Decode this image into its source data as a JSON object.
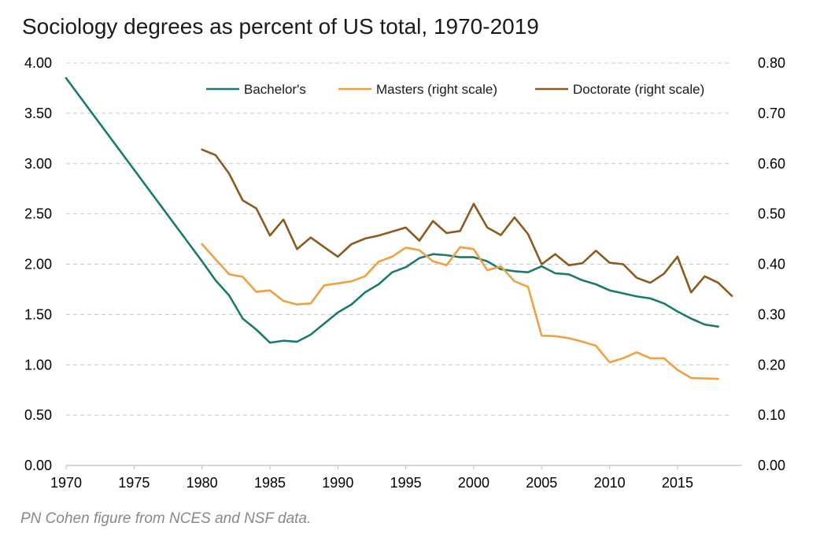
{
  "title": "Sociology degrees as percent of US total, 1970-2019",
  "footnote": "PN Cohen figure from NCES and NSF data.",
  "chart_data": {
    "type": "line",
    "title": "Sociology degrees as percent of US total, 1970-2019",
    "xlabel": "",
    "ylabel_left": "",
    "ylabel_right": "",
    "xlim": [
      1970,
      2019
    ],
    "ylim_left": [
      0,
      4
    ],
    "ylim_right": [
      0,
      0.8
    ],
    "x_ticks": [
      1970,
      1975,
      1980,
      1985,
      1990,
      1995,
      2000,
      2005,
      2010,
      2015
    ],
    "y_ticks_left": [
      "0.00",
      "0.50",
      "1.00",
      "1.50",
      "2.00",
      "2.50",
      "3.00",
      "3.50",
      "4.00"
    ],
    "y_ticks_right": [
      "0.00",
      "0.10",
      "0.20",
      "0.30",
      "0.40",
      "0.50",
      "0.60",
      "0.70",
      "0.80"
    ],
    "grid": "horizontal dashed",
    "legend_position": "top-right",
    "series": [
      {
        "name": "Bachelor's",
        "axis": "left",
        "color": "#1a7a6e",
        "x": [
          1970,
          1980,
          1981,
          1982,
          1983,
          1984,
          1985,
          1986,
          1987,
          1988,
          1989,
          1990,
          1991,
          1992,
          1993,
          1994,
          1995,
          1996,
          1997,
          1998,
          1999,
          2000,
          2001,
          2002,
          2003,
          2004,
          2005,
          2006,
          2007,
          2008,
          2009,
          2010,
          2011,
          2012,
          2013,
          2014,
          2015,
          2016,
          2017,
          2018
        ],
        "values": [
          3.85,
          2.03,
          1.84,
          1.69,
          1.46,
          1.35,
          1.22,
          1.24,
          1.23,
          1.3,
          1.41,
          1.52,
          1.6,
          1.72,
          1.8,
          1.92,
          1.97,
          2.06,
          2.1,
          2.09,
          2.07,
          2.07,
          2.03,
          1.95,
          1.93,
          1.92,
          1.98,
          1.91,
          1.9,
          1.84,
          1.8,
          1.74,
          1.71,
          1.68,
          1.66,
          1.61,
          1.53,
          1.46,
          1.4,
          1.38
        ]
      },
      {
        "name": "Masters (right scale)",
        "axis": "right",
        "color": "#f0a040",
        "x": [
          1980,
          1981,
          1982,
          1983,
          1984,
          1985,
          1986,
          1987,
          1988,
          1989,
          1990,
          1991,
          1992,
          1993,
          1994,
          1995,
          1996,
          1997,
          1998,
          1999,
          2000,
          2001,
          2002,
          2003,
          2004,
          2005,
          2006,
          2007,
          2008,
          2009,
          2010,
          2011,
          2012,
          2013,
          2014,
          2015,
          2016,
          2017,
          2018
        ],
        "values": [
          0.44,
          0.41,
          0.38,
          0.375,
          0.345,
          0.348,
          0.327,
          0.32,
          0.322,
          0.358,
          0.362,
          0.366,
          0.376,
          0.405,
          0.415,
          0.433,
          0.428,
          0.406,
          0.398,
          0.434,
          0.43,
          0.388,
          0.396,
          0.366,
          0.355,
          0.258,
          0.257,
          0.253,
          0.246,
          0.238,
          0.205,
          0.213,
          0.225,
          0.213,
          0.213,
          0.19,
          0.174,
          0.173,
          0.172
        ]
      },
      {
        "name": "Doctorate (right scale)",
        "axis": "right",
        "color": "#8b5a1e",
        "x": [
          1980,
          1981,
          1982,
          1983,
          1984,
          1985,
          1986,
          1987,
          1988,
          1989,
          1990,
          1991,
          1992,
          1993,
          1994,
          1995,
          1996,
          1997,
          1998,
          1999,
          2000,
          2001,
          2002,
          2003,
          2004,
          2005,
          2006,
          2007,
          2008,
          2009,
          2010,
          2011,
          2012,
          2013,
          2014,
          2015,
          2016,
          2017,
          2018,
          2019
        ],
        "values": [
          0.628,
          0.617,
          0.58,
          0.527,
          0.511,
          0.457,
          0.489,
          0.43,
          0.453,
          0.434,
          0.415,
          0.44,
          0.451,
          0.457,
          0.465,
          0.473,
          0.447,
          0.486,
          0.462,
          0.466,
          0.52,
          0.473,
          0.458,
          0.493,
          0.46,
          0.4,
          0.42,
          0.398,
          0.402,
          0.427,
          0.403,
          0.4,
          0.373,
          0.363,
          0.381,
          0.415,
          0.344,
          0.376,
          0.363,
          0.337
        ]
      }
    ]
  }
}
